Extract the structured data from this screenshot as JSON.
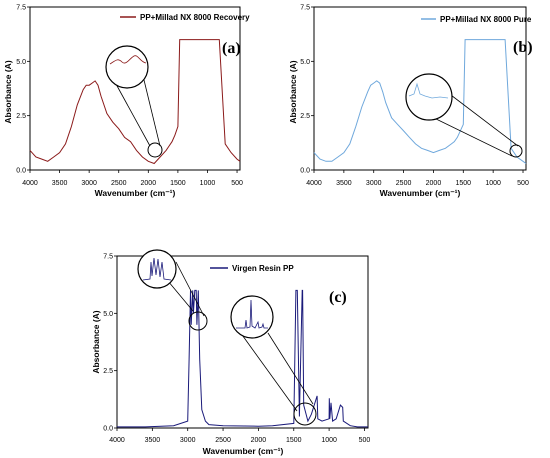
{
  "colors": {
    "a": "#8b1a1a",
    "a_light": "#e8b0b0",
    "b": "#6fa8dc",
    "b_light": "#c8dff5",
    "c": "#1a1a7a"
  },
  "chart_data": [
    {
      "id": "a",
      "type": "line",
      "panel_label": "(a)",
      "xlabel": "Wavenumber (cm⁻¹)",
      "ylabel": "Absorbance (A)",
      "xlim": [
        4000,
        450
      ],
      "ylim": [
        0,
        7.5
      ],
      "xticks": [
        4000,
        3500,
        3000,
        2500,
        2000,
        1500,
        1000,
        500
      ],
      "yticks": [
        0.0,
        2.5,
        5.0,
        7.5
      ],
      "tick_labels_x": [
        "4000",
        "3500",
        "3000",
        "2500",
        "2000",
        "1500",
        "1000",
        "500"
      ],
      "tick_labels_y": [
        "0.0",
        "2.5",
        "5.0",
        "7.5"
      ],
      "legend": "PP+Millad NX 8000 Recovery",
      "legend_position": "top-right",
      "x": [
        4000,
        3900,
        3800,
        3700,
        3600,
        3500,
        3400,
        3300,
        3200,
        3100,
        3050,
        3000,
        2950,
        2900,
        2850,
        2800,
        2700,
        2600,
        2500,
        2400,
        2300,
        2200,
        2100,
        2000,
        1900,
        1800,
        1700,
        1650,
        1600,
        1550,
        1500,
        1470,
        1400,
        1300,
        1200,
        1100,
        1000,
        900,
        800,
        700,
        600,
        500,
        450
      ],
      "y": [
        0.9,
        0.6,
        0.5,
        0.4,
        0.6,
        0.8,
        1.2,
        2.0,
        3.0,
        3.7,
        3.9,
        3.9,
        4.0,
        4.1,
        3.9,
        3.4,
        2.6,
        2.2,
        1.9,
        1.5,
        1.3,
        0.9,
        0.6,
        0.4,
        0.3,
        0.6,
        0.9,
        1.1,
        1.3,
        1.6,
        2.0,
        6.0,
        6.0,
        6.0,
        6.0,
        6.0,
        6.0,
        6.0,
        6.0,
        1.2,
        0.8,
        0.5,
        0.4
      ]
    },
    {
      "id": "b",
      "type": "line",
      "panel_label": "(b)",
      "xlabel": "Wavenumber (cm⁻¹)",
      "ylabel": "Absorbance (A)",
      "xlim": [
        4000,
        450
      ],
      "ylim": [
        0,
        7.5
      ],
      "xticks": [
        4000,
        3500,
        3000,
        2500,
        2000,
        1500,
        1000,
        500
      ],
      "yticks": [
        0.0,
        2.5,
        5.0,
        7.5
      ],
      "tick_labels_x": [
        "4000",
        "3500",
        "3000",
        "2500",
        "2000",
        "1500",
        "1000",
        "500"
      ],
      "tick_labels_y": [
        "0.0",
        "2.5",
        "5.0",
        "7.5"
      ],
      "legend": "PP+Millad NX 8000 Pure",
      "legend_position": "top-right",
      "x": [
        4000,
        3900,
        3800,
        3700,
        3600,
        3500,
        3400,
        3300,
        3200,
        3100,
        3050,
        3000,
        2950,
        2900,
        2850,
        2800,
        2700,
        2600,
        2500,
        2400,
        2300,
        2200,
        2100,
        2000,
        1900,
        1800,
        1700,
        1650,
        1600,
        1550,
        1500,
        1470,
        1400,
        1300,
        1200,
        1100,
        1000,
        900,
        800,
        700,
        600,
        500,
        450
      ],
      "y": [
        0.8,
        0.5,
        0.4,
        0.4,
        0.6,
        0.8,
        1.2,
        2.0,
        2.9,
        3.6,
        3.9,
        4.0,
        4.1,
        4.0,
        3.6,
        3.1,
        2.4,
        2.1,
        1.8,
        1.5,
        1.2,
        1.0,
        0.9,
        0.8,
        0.9,
        1.0,
        1.2,
        1.3,
        1.5,
        1.8,
        2.1,
        6.0,
        6.0,
        6.0,
        6.0,
        6.0,
        6.0,
        6.0,
        6.0,
        1.0,
        0.6,
        0.4,
        0.3
      ]
    },
    {
      "id": "c",
      "type": "line",
      "panel_label": "(c)",
      "xlabel": "Wavenumber (cm⁻¹)",
      "ylabel": "Absorbance (A)",
      "xlim": [
        4000,
        450
      ],
      "ylim": [
        0,
        7.5
      ],
      "xticks": [
        4000,
        3500,
        3000,
        2500,
        2000,
        1500,
        1000,
        500
      ],
      "yticks": [
        0.0,
        2.5,
        5.0,
        7.5
      ],
      "tick_labels_x": [
        "4000",
        "3500",
        "3000",
        "2500",
        "2000",
        "1500",
        "1000",
        "500"
      ],
      "tick_labels_y": [
        "0.0",
        "2.5",
        "5.0",
        "7.5"
      ],
      "legend": "Virgen Resin PP",
      "legend_position": "top-right",
      "x": [
        4000,
        3600,
        3200,
        3000,
        2980,
        2960,
        2950,
        2930,
        2920,
        2900,
        2880,
        2870,
        2850,
        2830,
        2800,
        2750,
        2700,
        2500,
        2000,
        1800,
        1500,
        1470,
        1460,
        1450,
        1420,
        1380,
        1375,
        1360,
        1300,
        1250,
        1170,
        1160,
        1100,
        1000,
        997,
        990,
        973,
        950,
        900,
        840,
        808,
        800,
        700,
        600,
        500,
        450
      ],
      "y": [
        0.05,
        0.05,
        0.1,
        0.3,
        3.0,
        6.0,
        4.5,
        6.0,
        5.0,
        6.0,
        6.0,
        4.5,
        6.0,
        3.0,
        0.8,
        0.3,
        0.15,
        0.1,
        0.08,
        0.1,
        0.2,
        6.0,
        6.0,
        6.0,
        0.5,
        6.0,
        6.0,
        1.0,
        0.3,
        0.6,
        1.4,
        0.4,
        0.3,
        0.4,
        1.3,
        0.4,
        1.1,
        0.3,
        0.4,
        1.0,
        0.9,
        0.3,
        0.1,
        0.05,
        0.05,
        0.05
      ]
    }
  ]
}
